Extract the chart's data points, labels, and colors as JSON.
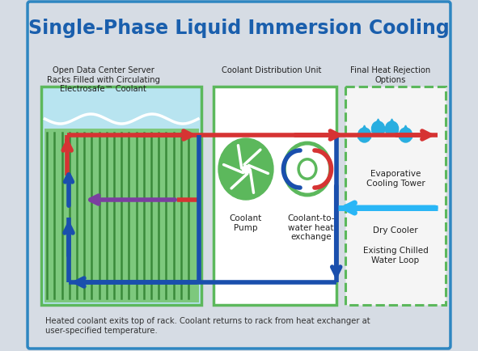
{
  "title": "Single-Phase Liquid Immersion Cooling",
  "title_color": "#1a5fad",
  "title_fontsize": 17,
  "bg_color": "#d6dce4",
  "border_color": "#2e86c1",
  "label_rack": "Open Data Center Server\nRacks Filled with Circulating\nElectrosafe™ Coolant",
  "label_cdu": "Coolant Distribution Unit",
  "label_final": "Final Heat Rejection\nOptions",
  "label_pump": "Coolant\nPump",
  "label_hx": "Coolant-to-\nwater heat\nexchange",
  "label_evap": "Evaporative\nCooling Tower",
  "label_dry": "Dry Cooler",
  "label_chilled": "Existing Chilled\nWater Loop",
  "label_footer": "Heated coolant exits top of rack. Coolant returns to rack from heat exchanger at\nuser-specified temperature.",
  "green_border": "#5cb85c",
  "light_blue_fill": "#b8e4f0",
  "pcb_green": "#7dc87d",
  "fin_green": "#3a8a3a",
  "red_arrow": "#d63333",
  "blue_arrow": "#1a4fad",
  "light_blue_arrow": "#29b6f6",
  "pump_green": "#5cb85c",
  "hx_border_green": "#5cb85c",
  "drop_color": "#29aee0"
}
